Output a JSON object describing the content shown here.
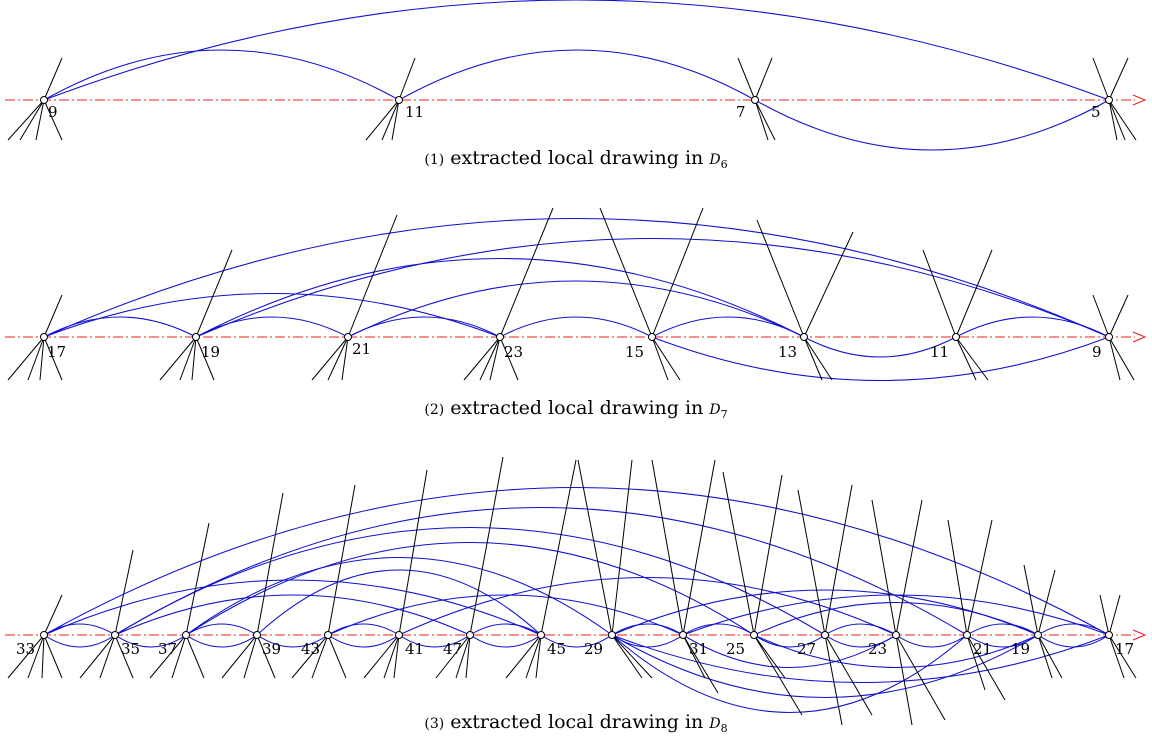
{
  "panels": [
    {
      "caption": {
        "number": "(1)",
        "text": "extracted local drawing in",
        "symbol": "D",
        "subscript": "6"
      },
      "labels": [
        "9",
        "11",
        "7",
        "5"
      ]
    },
    {
      "caption": {
        "number": "(2)",
        "text": "extracted local drawing in",
        "symbol": "D",
        "subscript": "7"
      },
      "labels": [
        "17",
        "19",
        "21",
        "23",
        "15",
        "13",
        "11",
        "9"
      ]
    },
    {
      "caption": {
        "number": "(3)",
        "text": "extracted local drawing in",
        "symbol": "D",
        "subscript": "8"
      },
      "labels": [
        "33",
        "35",
        "37",
        "39",
        "43",
        "41",
        "47",
        "45",
        "29",
        "31",
        "25",
        "27",
        "23",
        "21",
        "19",
        "17"
      ]
    }
  ],
  "colors": {
    "edge": "#1010d0",
    "axis": "#e8201c",
    "stub": "#000000"
  }
}
